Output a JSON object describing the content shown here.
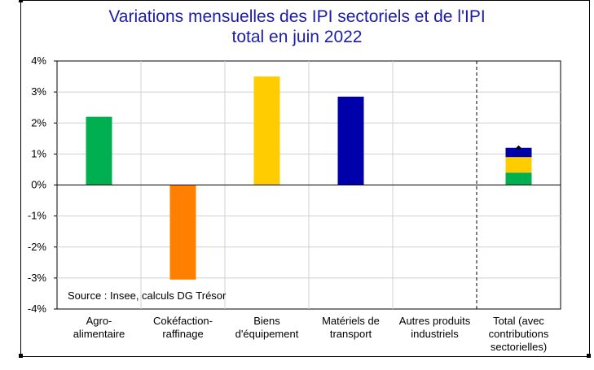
{
  "chart_data": {
    "type": "bar",
    "title_lines": [
      "Variations mensuelles des IPI sectoriels et de l'IPI",
      "total en juin 2022"
    ],
    "categories": [
      [
        "Agro-",
        "alimentaire"
      ],
      [
        "Cokéfaction-",
        "raffinage"
      ],
      [
        "Biens",
        "d'équipement"
      ],
      [
        "Matériels de",
        "transport"
      ],
      [
        "Autres produits",
        "industriels"
      ],
      [
        "Total (avec",
        "contributions",
        "sectorielles)"
      ]
    ],
    "sector_values": [
      {
        "category": 0,
        "value": 2.2,
        "color": "#00b050"
      },
      {
        "category": 1,
        "value": -3.05,
        "color": "#ff7f00"
      },
      {
        "category": 2,
        "value": 3.5,
        "color": "#ffcc00"
      },
      {
        "category": 3,
        "value": 2.85,
        "color": "#0000aa"
      },
      {
        "category": 4,
        "value": 0.0,
        "color": "#999999"
      }
    ],
    "total": {
      "category": 5,
      "stack": [
        {
          "value": 0.4,
          "color": "#00b050"
        },
        {
          "value": 0.5,
          "color": "#ffcc00"
        },
        {
          "value": 0.3,
          "color": "#0000aa"
        }
      ],
      "marker_value": 1.2
    },
    "ylim": [
      -4,
      4
    ],
    "yticks": [
      4,
      3,
      2,
      1,
      0,
      -1,
      -2,
      -3,
      -4
    ],
    "ytick_labels": [
      "4%",
      "3%",
      "2%",
      "1%",
      "0%",
      "-1%",
      "-2%",
      "-3%",
      "-4%"
    ],
    "source": "Source : Insee, calculs DG Trésor",
    "grid": true
  }
}
